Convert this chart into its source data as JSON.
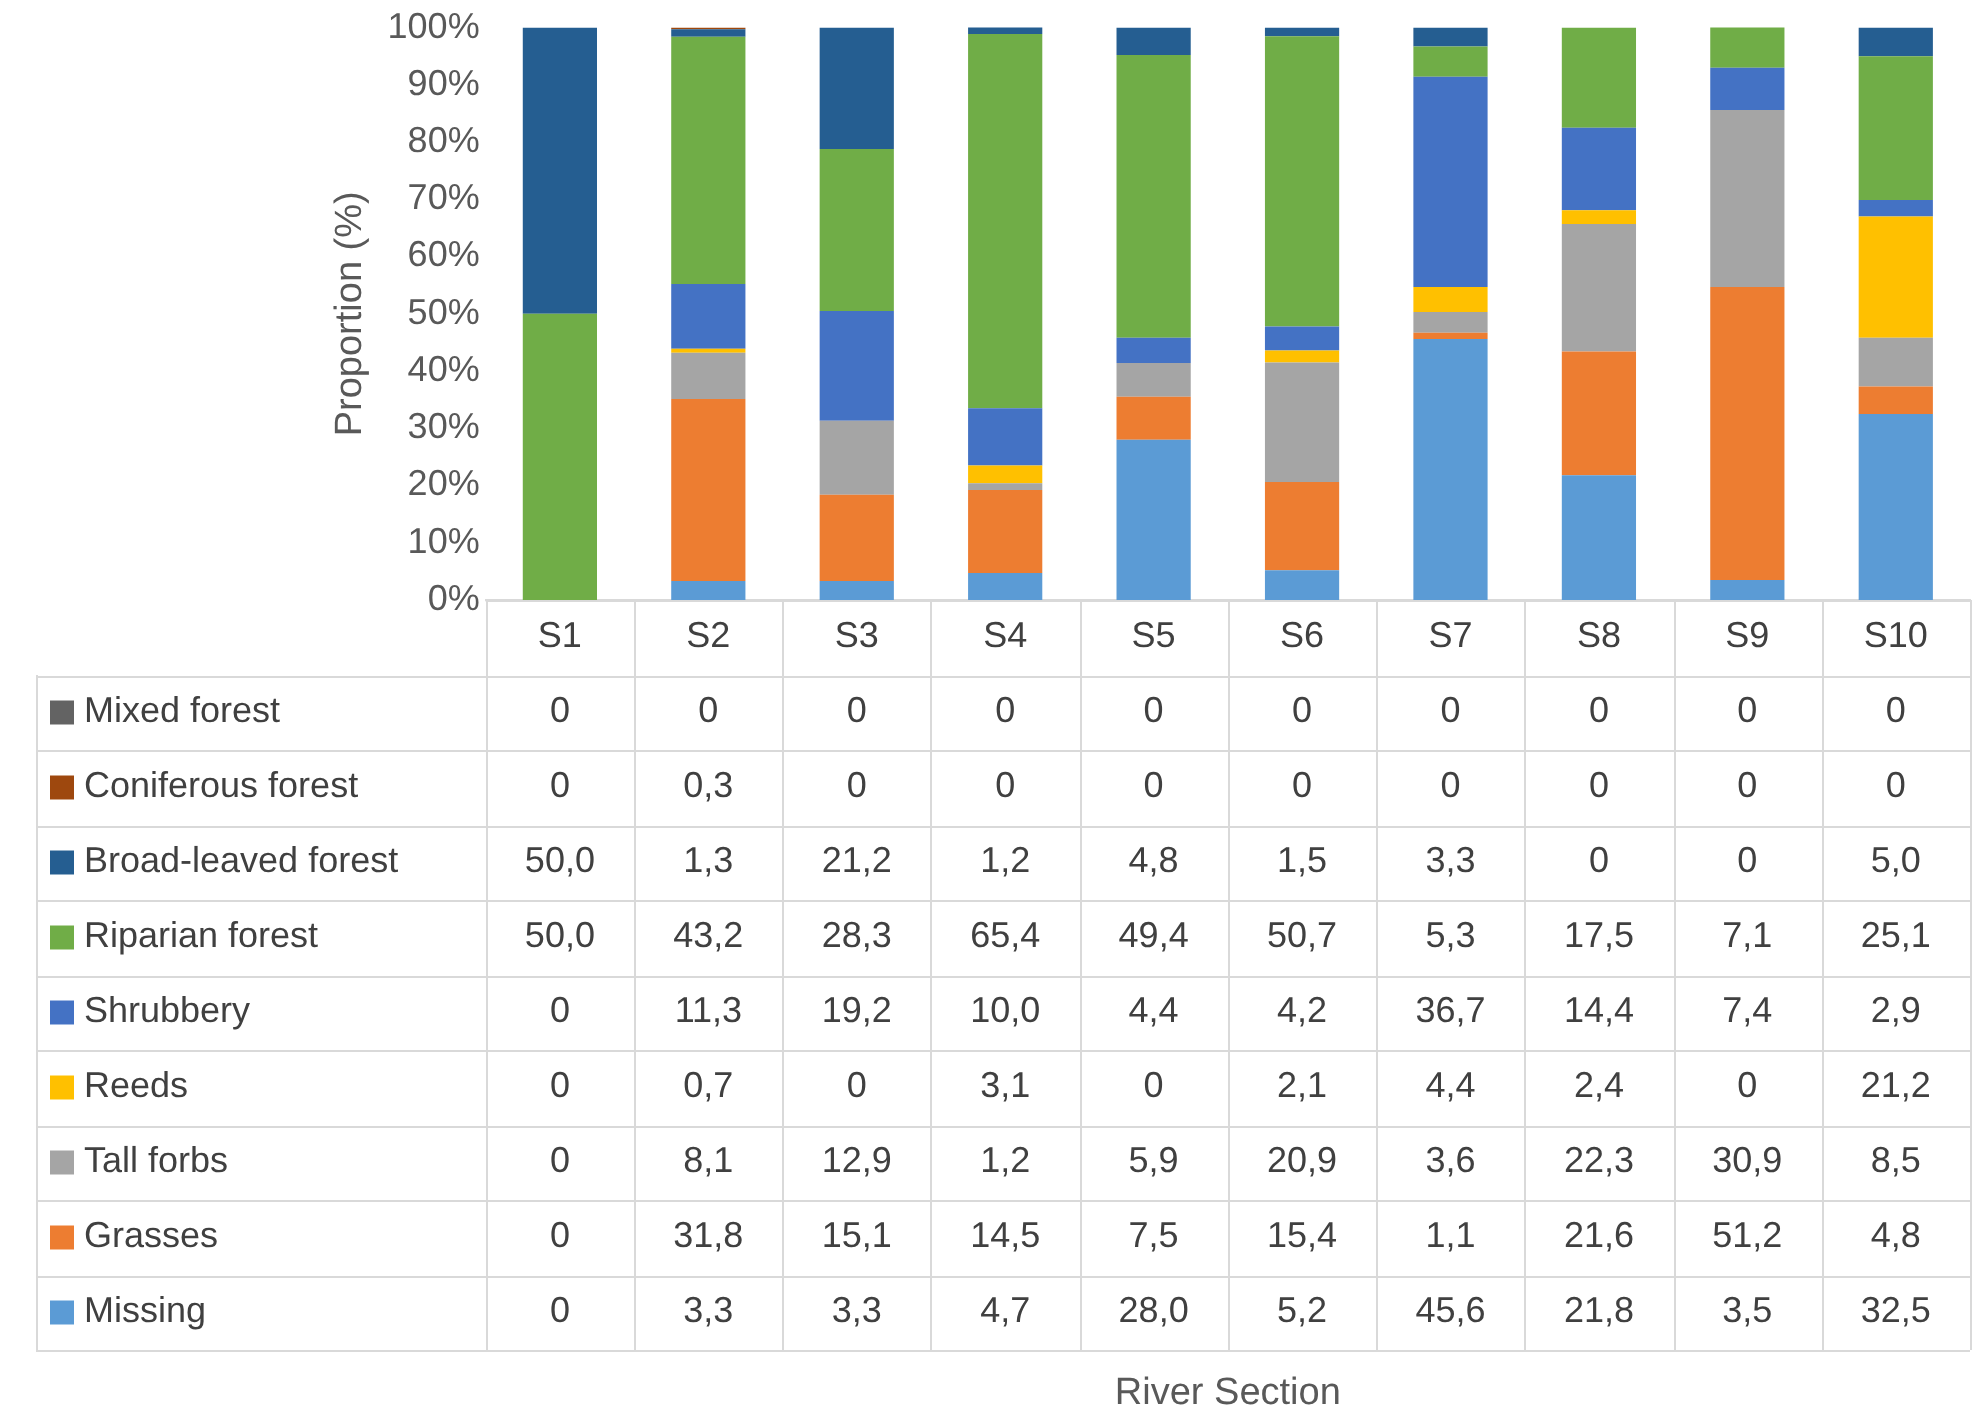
{
  "chart_data": {
    "type": "bar",
    "stacked": true,
    "ylabel": "Proportion (%)",
    "annotations": [
      "River Section"
    ],
    "legend": "bottom",
    "ylim": [
      0,
      100
    ],
    "yticks": [
      {
        "value": 0,
        "label": "0%"
      },
      {
        "value": 10,
        "label": "10%"
      },
      {
        "value": 20,
        "label": "20%"
      },
      {
        "value": 30,
        "label": "30%"
      },
      {
        "value": 40,
        "label": "40%"
      },
      {
        "value": 50,
        "label": "50%"
      },
      {
        "value": 60,
        "label": "60%"
      },
      {
        "value": 70,
        "label": "70%"
      },
      {
        "value": 80,
        "label": "80%"
      },
      {
        "value": 90,
        "label": "90%"
      },
      {
        "value": 100,
        "label": "100%"
      }
    ],
    "categories": [
      "S1",
      "S2",
      "S3",
      "S4",
      "S5",
      "S6",
      "S7",
      "S8",
      "S9",
      "S10"
    ],
    "series": [
      {
        "name": "Missing",
        "color": "#5b9bd5",
        "values": [
          0,
          3.3,
          3.3,
          4.7,
          28.0,
          5.2,
          45.6,
          21.8,
          3.5,
          32.5
        ],
        "value_labels": [
          "0",
          "3,3",
          "3,3",
          "4,7",
          "28,0",
          "5,2",
          "45,6",
          "21,8",
          "3,5",
          "32,5"
        ]
      },
      {
        "name": "Grasses",
        "color": "#ed7d31",
        "values": [
          0,
          31.8,
          15.1,
          14.5,
          7.5,
          15.4,
          1.1,
          21.6,
          51.2,
          4.8
        ],
        "value_labels": [
          "0",
          "31,8",
          "15,1",
          "14,5",
          "7,5",
          "15,4",
          "1,1",
          "21,6",
          "51,2",
          "4,8"
        ]
      },
      {
        "name": "Tall forbs",
        "color": "#a5a5a5",
        "values": [
          0,
          8.1,
          12.9,
          1.2,
          5.9,
          20.9,
          3.6,
          22.3,
          30.9,
          8.5
        ],
        "value_labels": [
          "0",
          "8,1",
          "12,9",
          "1,2",
          "5,9",
          "20,9",
          "3,6",
          "22,3",
          "30,9",
          "8,5"
        ]
      },
      {
        "name": "Reeds",
        "color": "#ffc000",
        "values": [
          0,
          0.7,
          0,
          3.1,
          0,
          2.1,
          4.4,
          2.4,
          0,
          21.2
        ],
        "value_labels": [
          "0",
          "0,7",
          "0",
          "3,1",
          "0",
          "2,1",
          "4,4",
          "2,4",
          "0",
          "21,2"
        ]
      },
      {
        "name": "Shrubbery",
        "color": "#4472c4",
        "values": [
          0,
          11.3,
          19.2,
          10.0,
          4.4,
          4.2,
          36.7,
          14.4,
          7.4,
          2.9
        ],
        "value_labels": [
          "0",
          "11,3",
          "19,2",
          "10,0",
          "4,4",
          "4,2",
          "36,7",
          "14,4",
          "7,4",
          "2,9"
        ]
      },
      {
        "name": "Riparian forest",
        "color": "#70ad47",
        "values": [
          50.0,
          43.2,
          28.3,
          65.4,
          49.4,
          50.7,
          5.3,
          17.5,
          7.1,
          25.1
        ],
        "value_labels": [
          "50,0",
          "43,2",
          "28,3",
          "65,4",
          "49,4",
          "50,7",
          "5,3",
          "17,5",
          "7,1",
          "25,1"
        ]
      },
      {
        "name": "Broad-leaved forest",
        "color": "#255e91",
        "values": [
          50.0,
          1.3,
          21.2,
          1.2,
          4.8,
          1.5,
          3.3,
          0,
          0,
          5.0
        ],
        "value_labels": [
          "50,0",
          "1,3",
          "21,2",
          "1,2",
          "4,8",
          "1,5",
          "3,3",
          "0",
          "0",
          "5,0"
        ]
      },
      {
        "name": "Coniferous forest",
        "color": "#9e480e",
        "values": [
          0,
          0.3,
          0,
          0,
          0,
          0,
          0,
          0,
          0,
          0
        ],
        "value_labels": [
          "0",
          "0,3",
          "0",
          "0",
          "0",
          "0",
          "0",
          "0",
          "0",
          "0"
        ]
      },
      {
        "name": "Mixed forest",
        "color": "#636363",
        "values": [
          0,
          0,
          0,
          0,
          0,
          0,
          0,
          0,
          0,
          0
        ],
        "value_labels": [
          "0",
          "0",
          "0",
          "0",
          "0",
          "0",
          "0",
          "0",
          "0",
          "0"
        ]
      }
    ]
  }
}
